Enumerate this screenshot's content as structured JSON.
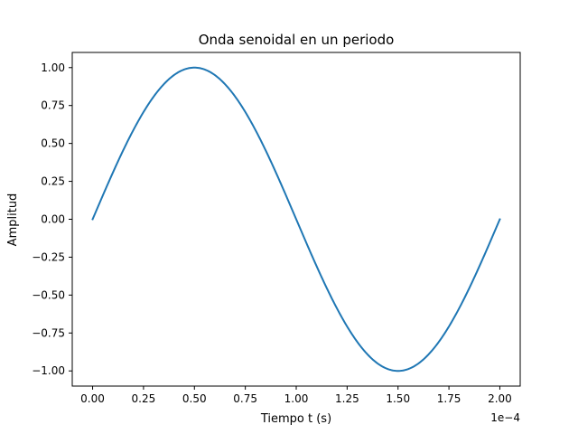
{
  "chart_data": {
    "type": "line",
    "title": "Onda senoidal en un periodo",
    "xlabel": "Tiempo t (s)",
    "ylabel": "Amplitud",
    "x_offset_text": "1e−4",
    "xlim": [
      -1e-05,
      0.00021
    ],
    "ylim": [
      -1.1,
      1.1
    ],
    "grid": false,
    "x_ticks": [
      0.0,
      2.5e-05,
      5e-05,
      7.5e-05,
      0.0001,
      0.000125,
      0.00015,
      0.000175,
      0.0002
    ],
    "x_tick_labels": [
      "0.00",
      "0.25",
      "0.50",
      "0.75",
      "1.00",
      "1.25",
      "1.50",
      "1.75",
      "2.00"
    ],
    "y_ticks": [
      -1.0,
      -0.75,
      -0.5,
      -0.25,
      0.0,
      0.25,
      0.5,
      0.75,
      1.0
    ],
    "y_tick_labels": [
      "−1.00",
      "−0.75",
      "−0.50",
      "−0.25",
      "0.00",
      "0.25",
      "0.50",
      "0.75",
      "1.00"
    ],
    "series": [
      {
        "color": "#1f77b4",
        "x": [
          0.0,
          1e-05,
          2e-05,
          3e-05,
          4e-05,
          5e-05,
          6e-05,
          7e-05,
          8e-05,
          9e-05,
          0.0001,
          0.00011,
          0.00012,
          0.00013,
          0.00014,
          0.00015,
          0.00016,
          0.00017,
          0.00018,
          0.00019,
          0.0002
        ],
        "y": [
          0.0,
          0.309,
          0.588,
          0.809,
          0.951,
          1.0,
          0.951,
          0.809,
          0.588,
          0.309,
          0.0,
          -0.309,
          -0.588,
          -0.809,
          -0.951,
          -1.0,
          -0.951,
          -0.809,
          -0.588,
          -0.309,
          0.0
        ]
      }
    ]
  }
}
